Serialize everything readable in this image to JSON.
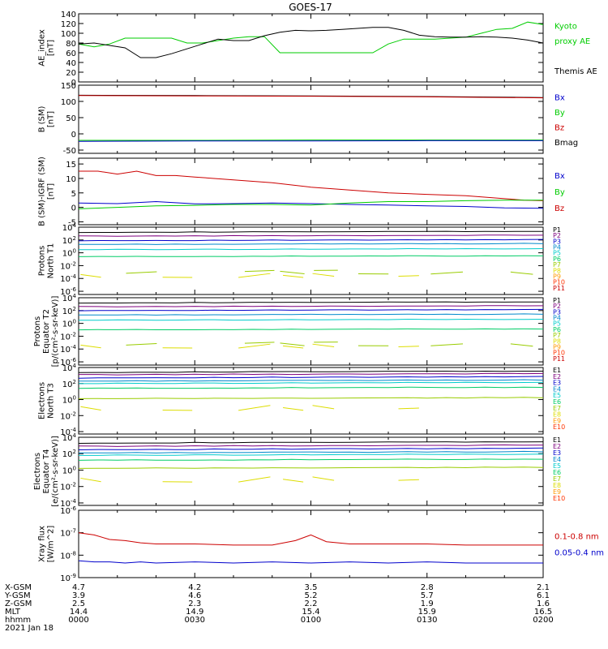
{
  "title": "GOES-17",
  "colors": {
    "black": "#000000",
    "green": "#00cc00",
    "blue": "#0000cc",
    "red": "#cc0000",
    "p": [
      "#000000",
      "#7f007f",
      "#0000cc",
      "#0088cc",
      "#00cccc",
      "#00cc66",
      "#99cc00",
      "#dddd00",
      "#ff9900",
      "#ff3300",
      "#cc0000"
    ],
    "e": [
      "#000000",
      "#7f007f",
      "#0000cc",
      "#0088cc",
      "#00cccc",
      "#00cc66",
      "#99cc00",
      "#dddd00",
      "#ff9900",
      "#ff3300",
      "#cc0000"
    ]
  },
  "orbit": {
    "rows": [
      {
        "label": "X-GSM",
        "values": [
          "4.7",
          "4.2",
          "3.5",
          "2.8",
          "2.1"
        ]
      },
      {
        "label": "Y-GSM",
        "values": [
          "3.9",
          "4.6",
          "5.2",
          "5.7",
          "6.1"
        ]
      },
      {
        "label": "Z-GSM",
        "values": [
          "2.5",
          "2.3",
          "2.2",
          "1.9",
          "1.6"
        ]
      },
      {
        "label": "MLT",
        "values": [
          "14.4",
          "14.9",
          "15.4",
          "15.9",
          "16.5"
        ]
      },
      {
        "label": "hhmm",
        "values": [
          "0000",
          "0030",
          "0100",
          "0130",
          "0200"
        ]
      }
    ],
    "date": "2021 Jan 18"
  },
  "chart_data": [
    {
      "type": "line",
      "ylabel": [
        "AE_index",
        "[nT]"
      ],
      "ylim": [
        0,
        140
      ],
      "yticks": [
        {
          "v": 0,
          "label": "0"
        },
        {
          "v": 20,
          "label": "20"
        },
        {
          "v": 40,
          "label": "40"
        },
        {
          "v": 60,
          "label": "60"
        },
        {
          "v": 80,
          "label": "80"
        },
        {
          "v": 100,
          "label": "100"
        },
        {
          "v": 120,
          "label": "120"
        },
        {
          "v": 140,
          "label": "140"
        }
      ],
      "legend": [
        {
          "text": "Kyoto",
          "color": "#00cc00"
        },
        {
          "text": "proxy AE",
          "color": "#00cc00"
        },
        {
          "text": "",
          "color": "#000000"
        },
        {
          "text": "Themis AE",
          "color": "#000000"
        }
      ],
      "series": [
        {
          "color": "#00cc00",
          "x": [
            0,
            4,
            8,
            12,
            16,
            20,
            24,
            28,
            32,
            36,
            40,
            44,
            48,
            52,
            56,
            60,
            64,
            68,
            72,
            76,
            80,
            84,
            88,
            92,
            96,
            100,
            104,
            108,
            112,
            116,
            120
          ],
          "y": [
            78,
            72,
            78,
            90,
            90,
            90,
            90,
            80,
            80,
            85,
            90,
            93,
            93,
            60,
            60,
            60,
            60,
            60,
            60,
            60,
            78,
            88,
            88,
            88,
            90,
            92,
            100,
            108,
            110,
            123,
            118
          ]
        },
        {
          "color": "#000000",
          "x": [
            0,
            4,
            8,
            12,
            16,
            20,
            24,
            28,
            32,
            36,
            40,
            44,
            48,
            52,
            56,
            60,
            64,
            68,
            72,
            76,
            80,
            84,
            88,
            92,
            96,
            100,
            104,
            108,
            112,
            116,
            120
          ],
          "y": [
            78,
            80,
            75,
            70,
            50,
            50,
            58,
            68,
            78,
            88,
            85,
            85,
            95,
            102,
            106,
            105,
            106,
            108,
            110,
            112,
            112,
            106,
            96,
            93,
            92,
            92,
            93,
            92,
            90,
            86,
            80
          ]
        }
      ]
    },
    {
      "type": "line",
      "ylabel": [
        "B (SM)",
        "[nT]"
      ],
      "ylim": [
        -60,
        150
      ],
      "yticks": [
        {
          "v": -50,
          "label": "-50"
        },
        {
          "v": 0,
          "label": "0"
        },
        {
          "v": 50,
          "label": "50"
        },
        {
          "v": 100,
          "label": "100"
        },
        {
          "v": 150,
          "label": "150"
        }
      ],
      "legend": [
        {
          "text": "Bx",
          "color": "#0000cc"
        },
        {
          "text": "By",
          "color": "#00cc00"
        },
        {
          "text": "Bz",
          "color": "#cc0000"
        },
        {
          "text": "Bmag",
          "color": "#000000"
        }
      ],
      "series": [
        {
          "color": "#000000",
          "x": [
            0,
            30,
            60,
            90,
            120
          ],
          "y": [
            119,
            118,
            117,
            115,
            112
          ]
        },
        {
          "color": "#cc0000",
          "x": [
            0,
            30,
            60,
            90,
            120
          ],
          "y": [
            118,
            117,
            116,
            114,
            111
          ]
        },
        {
          "color": "#00cc00",
          "x": [
            0,
            30,
            60,
            90,
            120
          ],
          "y": [
            -20,
            -20,
            -19,
            -19,
            -19
          ]
        },
        {
          "color": "#0000cc",
          "x": [
            0,
            30,
            60,
            90,
            120
          ],
          "y": [
            -23,
            -22,
            -22,
            -21,
            -21
          ]
        }
      ]
    },
    {
      "type": "line",
      "ylabel": [
        "B (SM)-IGRF (SM)",
        "[nT]"
      ],
      "ylim": [
        -6,
        17
      ],
      "yticks": [
        {
          "v": -5,
          "label": "-5"
        },
        {
          "v": 0,
          "label": "0"
        },
        {
          "v": 5,
          "label": "5"
        },
        {
          "v": 10,
          "label": "10"
        },
        {
          "v": 15,
          "label": "15"
        }
      ],
      "legend": [
        {
          "text": "Bx",
          "color": "#0000cc"
        },
        {
          "text": "By",
          "color": "#00cc00"
        },
        {
          "text": "Bz",
          "color": "#cc0000"
        }
      ],
      "series": [
        {
          "color": "#cc0000",
          "x": [
            0,
            5,
            10,
            15,
            20,
            25,
            30,
            40,
            50,
            60,
            70,
            80,
            90,
            100,
            110,
            115,
            120
          ],
          "y": [
            12.5,
            12.5,
            11.5,
            12.5,
            11,
            11,
            10.5,
            9.5,
            8.5,
            7,
            6,
            5,
            4.5,
            4,
            3,
            2.5,
            2.3
          ]
        },
        {
          "color": "#0000cc",
          "x": [
            0,
            10,
            20,
            30,
            40,
            50,
            60,
            70,
            80,
            90,
            100,
            110,
            120
          ],
          "y": [
            1.5,
            1.3,
            2,
            1.2,
            1.3,
            1.5,
            1.3,
            1,
            0.8,
            0.5,
            0.3,
            -0.2,
            -0.3
          ]
        },
        {
          "color": "#00cc00",
          "x": [
            0,
            10,
            20,
            30,
            40,
            50,
            60,
            70,
            80,
            90,
            100,
            110,
            120
          ],
          "y": [
            -0.5,
            0,
            0.5,
            0.7,
            1,
            1,
            0.8,
            1.5,
            2,
            2,
            2.3,
            2.5,
            2.5
          ]
        }
      ]
    },
    {
      "type": "line",
      "ylabel": [
        "Protons",
        "North T1"
      ],
      "log": true,
      "ylim": [
        -6.5,
        4
      ],
      "yticks": [
        {
          "v": 4,
          "label": "10^4"
        },
        {
          "v": 2,
          "label": "10^2"
        },
        {
          "v": 0,
          "label": "10^0"
        },
        {
          "v": -2,
          "label": "10^-2"
        },
        {
          "v": -4,
          "label": "10^-4"
        },
        {
          "v": -6,
          "label": "10^-6"
        }
      ],
      "legend": [
        "P1",
        "P2",
        "P3",
        "P4",
        "P5",
        "P6",
        "P7",
        "P8",
        "P9",
        "P10",
        "P11"
      ],
      "levels": [
        3.2,
        2.6,
        1.9,
        1.3,
        0.5,
        -0.6,
        -3.0,
        -3.5
      ],
      "noisy": [
        -3.0,
        -3.5
      ]
    },
    {
      "type": "line",
      "ylabel": [
        "Protons",
        "Equator T2",
        "[p/(cm²-s-sr-keV)]"
      ],
      "log": true,
      "ylim": [
        -6.5,
        4
      ],
      "yticks": [
        {
          "v": 4,
          "label": "10^4"
        },
        {
          "v": 2,
          "label": "10^2"
        },
        {
          "v": 0,
          "label": "10^0"
        },
        {
          "v": -2,
          "label": "10^-2"
        },
        {
          "v": -4,
          "label": "10^-4"
        },
        {
          "v": -6,
          "label": "10^-6"
        }
      ],
      "legend": [
        "P1",
        "P2",
        "P3",
        "P4",
        "P5",
        "P6",
        "P7",
        "P8",
        "P9",
        "P10",
        "P11"
      ],
      "levels": [
        3.2,
        2.6,
        2.0,
        1.3,
        0.5,
        -1.0,
        -3.2,
        -3.5
      ],
      "noisy": [
        -3.2,
        -3.5
      ]
    },
    {
      "type": "line",
      "ylabel": [
        "Electrons",
        "North T3"
      ],
      "log": true,
      "ylim": [
        -4.3,
        4
      ],
      "yticks": [
        {
          "v": 4,
          "label": "10^4"
        },
        {
          "v": 2,
          "label": "10^2"
        },
        {
          "v": 0,
          "label": "10^0"
        },
        {
          "v": -2,
          "label": "10^-2"
        },
        {
          "v": -4,
          "label": "10^-4"
        }
      ],
      "legend": [
        "E1",
        "E2",
        "E3",
        "E4",
        "E5",
        "E6",
        "E7",
        "E8",
        "E9",
        "E10"
      ],
      "levels": [
        3.4,
        3.1,
        2.7,
        2.3,
        2.0,
        1.4,
        0.1,
        -1.0
      ],
      "noisy": [
        -1.0,
        -2.0
      ]
    },
    {
      "type": "line",
      "ylabel": [
        "Electrons",
        "Equator T4",
        "[e/(cm²-s-sr-keV)]"
      ],
      "log": true,
      "ylim": [
        -4.3,
        4
      ],
      "yticks": [
        {
          "v": 4,
          "label": "10^4"
        },
        {
          "v": 2,
          "label": "10^2"
        },
        {
          "v": 0,
          "label": "10^0"
        },
        {
          "v": -2,
          "label": "10^-2"
        },
        {
          "v": -4,
          "label": "10^-4"
        }
      ],
      "legend": [
        "E1",
        "E2",
        "E3",
        "E4",
        "E5",
        "E6",
        "E7",
        "E8",
        "E9",
        "E10"
      ],
      "levels": [
        3.3,
        2.9,
        2.5,
        2.1,
        1.8,
        1.2,
        0.2,
        -1.1
      ],
      "noisy": [
        -1.1,
        -1.6
      ]
    },
    {
      "type": "line",
      "ylabel": [
        "Xray flux",
        "[W/m^2]"
      ],
      "log": true,
      "ylim": [
        -9,
        -6
      ],
      "yticks": [
        {
          "v": -6,
          "label": "10^-6"
        },
        {
          "v": -7,
          "label": "10^-7"
        },
        {
          "v": -8,
          "label": "10^-8"
        },
        {
          "v": -9,
          "label": "10^-9"
        }
      ],
      "legend": [
        {
          "text": "0.1-0.8 nm",
          "color": "#cc0000"
        },
        {
          "text": "0.05-0.4 nm",
          "color": "#0000cc"
        }
      ],
      "series": [
        {
          "color": "#cc0000",
          "x": [
            0,
            4,
            8,
            12,
            16,
            20,
            30,
            40,
            50,
            56,
            60,
            64,
            70,
            80,
            90,
            100,
            110,
            120
          ],
          "y": [
            -7.0,
            -7.1,
            -7.3,
            -7.35,
            -7.45,
            -7.5,
            -7.5,
            -7.55,
            -7.55,
            -7.35,
            -7.1,
            -7.4,
            -7.5,
            -7.5,
            -7.5,
            -7.55,
            -7.55,
            -7.55
          ]
        },
        {
          "color": "#0000cc",
          "x": [
            0,
            4,
            8,
            12,
            16,
            20,
            30,
            40,
            50,
            60,
            70,
            80,
            90,
            100,
            110,
            120
          ],
          "y": [
            -8.25,
            -8.3,
            -8.3,
            -8.35,
            -8.3,
            -8.35,
            -8.3,
            -8.35,
            -8.3,
            -8.35,
            -8.3,
            -8.35,
            -8.3,
            -8.35,
            -8.35,
            -8.35
          ]
        }
      ]
    }
  ]
}
